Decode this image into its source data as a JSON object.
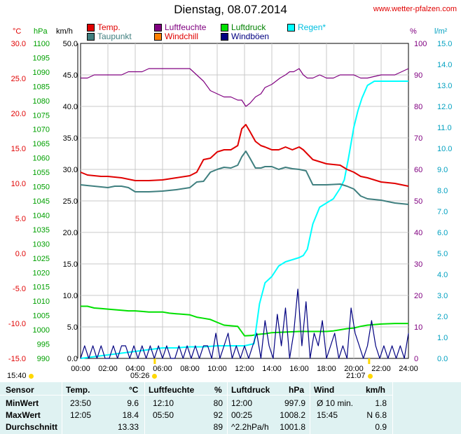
{
  "header": {
    "title": "Dienstag, 08.07.2014",
    "site": "www.wetter-pfalzen.com"
  },
  "axis_heads": {
    "temp": "°C",
    "press": "hPa",
    "wind": "km/h",
    "hum": "%",
    "rain": "l/m²"
  },
  "legend": [
    {
      "label": "Temp.",
      "color": "#e00000"
    },
    {
      "label": "Taupunkt",
      "color": "#3f7f7f"
    },
    {
      "label": "Luftfeuchte",
      "color": "#800080"
    },
    {
      "label": "Windchill",
      "color": "#ff8000"
    },
    {
      "label": "Luftdruck",
      "color": "#00e000"
    },
    {
      "label": "Windböen",
      "color": "#000080"
    },
    {
      "label": "Regen*",
      "color": "#00ffff"
    }
  ],
  "sun": {
    "sunrise": "05:26",
    "sunset": "21:07",
    "sunrise_hour": 5.43,
    "sunset_hour": 21.12,
    "left_label": "15:40"
  },
  "chart_data": {
    "type": "line",
    "title": "Dienstag, 08.07.2014",
    "x_ticks": [
      "00:00",
      "02:00",
      "04:00",
      "06:00",
      "08:00",
      "10:00",
      "12:00",
      "14:00",
      "16:00",
      "18:00",
      "20:00",
      "22:00",
      "24:00"
    ],
    "xlim": [
      0,
      24
    ],
    "axes": {
      "temp_c": {
        "ticks": [
          "30.0",
          "25.0",
          "20.0",
          "15.0",
          "10.0",
          "5.0",
          "0.0",
          "-5.0",
          "-10.0",
          "-15.0"
        ],
        "ylim": [
          -15,
          30
        ],
        "color": "#e00000"
      },
      "pressure_hpa": {
        "ticks": [
          "1100",
          "1095",
          "1090",
          "1085",
          "1080",
          "1075",
          "1070",
          "1065",
          "1060",
          "1055",
          "1050",
          "1045",
          "1040",
          "1035",
          "1030",
          "1025",
          "1020",
          "1015",
          "1010",
          "1005",
          "1000",
          "995",
          "990"
        ],
        "ylim": [
          990,
          1100
        ],
        "color": "#00a000"
      },
      "wind_kmh": {
        "ticks": [
          "50.0",
          "45.0",
          "40.0",
          "35.0",
          "30.0",
          "25.0",
          "20.0",
          "15.0",
          "10.0",
          "5.0",
          "0.0"
        ],
        "ylim": [
          0,
          50
        ],
        "color": "#000"
      },
      "humidity_pct": {
        "ticks": [
          "100",
          "90",
          "80",
          "70",
          "60",
          "50",
          "40",
          "30",
          "20",
          "10",
          "0"
        ],
        "ylim": [
          0,
          100
        ],
        "color": "#800080"
      },
      "rain_lm2": {
        "ticks": [
          "15.0",
          "14.0",
          "13.0",
          "12.0",
          "11.0",
          "10.0",
          "9.0",
          "8.0",
          "7.0",
          "6.0",
          "5.0",
          "4.0",
          "3.0",
          "2.0",
          "1.0",
          "0.0"
        ],
        "ylim": [
          0,
          15
        ],
        "color": "#00a0c0"
      }
    },
    "series": [
      {
        "name": "Temp.",
        "axis": "temp_c",
        "color": "#e00000",
        "x": [
          0,
          0.5,
          1.5,
          2,
          3,
          4,
          5,
          6,
          7,
          8,
          8.5,
          9,
          9.5,
          10,
          10.5,
          11,
          11.5,
          11.8,
          12.1,
          12.4,
          12.8,
          13.2,
          13.5,
          14,
          14.5,
          15,
          15.5,
          16,
          16.3,
          16.6,
          17,
          18,
          19,
          19.5,
          20,
          20.5,
          21,
          22,
          23,
          24
        ],
        "y": [
          11.6,
          11.2,
          11,
          11,
          10.8,
          10.4,
          10.4,
          10.5,
          10.8,
          11.1,
          11.6,
          13.4,
          13.6,
          14.5,
          14.8,
          14.8,
          15.4,
          17.8,
          18.4,
          17.4,
          16,
          15.4,
          15.2,
          14.8,
          14.8,
          15.2,
          14.8,
          15.2,
          14.8,
          14.2,
          13.4,
          12.8,
          12.6,
          12,
          11.6,
          11,
          10.8,
          10.2,
          10,
          9.6
        ]
      },
      {
        "name": "Taupunkt",
        "axis": "temp_c",
        "color": "#3f7f7f",
        "x": [
          0,
          1,
          2,
          2.5,
          3,
          3.5,
          4,
          5,
          6,
          7,
          8,
          8.5,
          9,
          9.5,
          10,
          10.5,
          11,
          11.5,
          11.8,
          12.1,
          12.4,
          12.8,
          13.2,
          13.5,
          14,
          14.5,
          15,
          15.5,
          16,
          16.5,
          17,
          18,
          19,
          19.5,
          20,
          20.5,
          21,
          22,
          23,
          24
        ],
        "y": [
          9.8,
          9.6,
          9.4,
          9.6,
          9.6,
          9.4,
          8.8,
          8.8,
          8.9,
          9.1,
          9.4,
          10.2,
          10.3,
          11.6,
          12,
          12.3,
          12.2,
          12.6,
          13.8,
          14.6,
          13.6,
          12.2,
          12.2,
          12.4,
          12.4,
          12,
          12.3,
          12.1,
          12,
          11.8,
          9.8,
          9.8,
          9.9,
          9.6,
          9.2,
          8.2,
          7.8,
          7.6,
          7.2,
          7
        ]
      },
      {
        "name": "Luftfeuchte",
        "axis": "humidity_pct",
        "color": "#800080",
        "x": [
          0,
          0.5,
          1,
          2,
          3,
          3.5,
          4.5,
          5,
          6,
          7,
          8,
          9,
          9.5,
          10,
          10.5,
          11,
          11.5,
          11.8,
          12.1,
          12.4,
          12.8,
          13.2,
          13.5,
          14,
          14.3,
          14.6,
          15,
          15.3,
          15.6,
          16,
          16.3,
          16.6,
          17,
          17.5,
          18,
          18.5,
          19,
          19.5,
          20,
          20.5,
          21,
          22,
          23,
          23.5,
          24
        ],
        "y": [
          89,
          89,
          90,
          90,
          90,
          91,
          91,
          92,
          92,
          92,
          92,
          88,
          85,
          84,
          83,
          83,
          82,
          82,
          80,
          81,
          83,
          84,
          86,
          87,
          88,
          89,
          90,
          91,
          91,
          92,
          90,
          89,
          89,
          90,
          89,
          89,
          90,
          90,
          90,
          89,
          89,
          90,
          90,
          91,
          92
        ]
      },
      {
        "name": "Luftdruck",
        "axis": "pressure_hpa",
        "color": "#00e000",
        "x": [
          0,
          0.5,
          1,
          1.5,
          2,
          3,
          3.5,
          4,
          4.5,
          5,
          6,
          6.5,
          7,
          8,
          8.5,
          9,
          9.5,
          10,
          10.5,
          11,
          11.5,
          12,
          12.5,
          13,
          13.5,
          14,
          15,
          16,
          17,
          18,
          18.5,
          19,
          19.5,
          20,
          20.5,
          21,
          22,
          23,
          24
        ],
        "y": [
          1008.2,
          1008.2,
          1007.6,
          1007.4,
          1007.2,
          1006.8,
          1006.6,
          1006.6,
          1006.4,
          1006.2,
          1006.2,
          1005.8,
          1005.6,
          1005.2,
          1004.4,
          1004,
          1003.6,
          1002.6,
          1001.6,
          1001.4,
          1001.2,
          997.9,
          998,
          998.4,
          998.6,
          999,
          999.2,
          999.4,
          999.4,
          999.4,
          999.6,
          1000,
          1000.4,
          1000.6,
          1001.2,
          1001.6,
          1002,
          1002.2,
          1002.2
        ]
      },
      {
        "name": "Regen*",
        "axis": "rain_lm2",
        "color": "#00ffff",
        "x": [
          0,
          6,
          7,
          8,
          9,
          10,
          11,
          12,
          12.7,
          13.1,
          13.5,
          14,
          14.5,
          15,
          15.5,
          16,
          16.3,
          16.6,
          17,
          17.5,
          18,
          18.5,
          19,
          19.3,
          19.6,
          20,
          20.3,
          20.6,
          21,
          21.5,
          22,
          23,
          24
        ],
        "y": [
          0,
          0.5,
          0.5,
          0.55,
          0.55,
          0.6,
          0.6,
          0.6,
          0.7,
          2.6,
          3.6,
          3.9,
          4.4,
          4.6,
          4.7,
          4.8,
          4.9,
          5.2,
          6.4,
          7.2,
          7.4,
          7.6,
          8.1,
          8.5,
          9.5,
          11,
          11.8,
          12.4,
          13,
          13.2,
          13.2,
          13.2,
          13.2
        ]
      },
      {
        "name": "Windböen",
        "axis": "wind_kmh",
        "color": "#000080",
        "x": [
          0,
          0.3,
          0.6,
          0.9,
          1.2,
          1.5,
          1.8,
          2.1,
          2.4,
          2.7,
          3,
          3.3,
          3.6,
          3.9,
          4.2,
          4.5,
          4.8,
          5.1,
          5.4,
          5.7,
          6,
          6.3,
          6.6,
          6.9,
          7.2,
          7.5,
          7.8,
          8.1,
          8.4,
          8.7,
          9,
          9.3,
          9.6,
          9.9,
          10.2,
          10.5,
          10.8,
          11.1,
          11.4,
          11.7,
          12,
          12.3,
          12.6,
          12.9,
          13.2,
          13.5,
          13.8,
          14.1,
          14.4,
          14.7,
          15,
          15.3,
          15.6,
          15.9,
          16.2,
          16.5,
          16.8,
          17.1,
          17.4,
          17.7,
          18,
          18.3,
          18.6,
          18.9,
          19.2,
          19.5,
          19.8,
          20.1,
          20.4,
          20.7,
          21,
          21.3,
          21.6,
          21.9,
          22.2,
          22.5,
          22.8,
          23.1,
          23.4,
          23.7,
          24
        ],
        "y": [
          0,
          2,
          0,
          2,
          0,
          2,
          0,
          0,
          2,
          0,
          2,
          2,
          0,
          2,
          0,
          2,
          0,
          2,
          0,
          2,
          0,
          2,
          0,
          0,
          2,
          0,
          2,
          0,
          2,
          0,
          2,
          2,
          0,
          4,
          0,
          2,
          4,
          0,
          2,
          0,
          2,
          0,
          2,
          4,
          0,
          6,
          2,
          0,
          7,
          2,
          8,
          0,
          4,
          11,
          2,
          9,
          0,
          4,
          2,
          6,
          0,
          2,
          4,
          0,
          2,
          0,
          8,
          4,
          2,
          0,
          2,
          6,
          2,
          0,
          2,
          0,
          2,
          0,
          2,
          0,
          4
        ]
      }
    ]
  },
  "stats": {
    "headers": {
      "sensor": "Sensor",
      "temp": "Temp.",
      "temp_unit": "°C",
      "hum": "Luftfeuchte",
      "hum_unit": "%",
      "press": "Luftdruck",
      "press_unit": "hPa",
      "wind": "Wind",
      "wind_unit": "km/h"
    },
    "rows": [
      {
        "label": "MinWert",
        "t_time": "23:50",
        "t_val": "9.6",
        "h_time": "12:10",
        "h_val": "80",
        "p_time": "12:00",
        "p_val": "997.9",
        "w_label": "Ø 10 min.",
        "w_val": "1.8"
      },
      {
        "label": "MaxWert",
        "t_time": "12:05",
        "t_val": "18.4",
        "h_time": "05:50",
        "h_val": "92",
        "p_time": "00:25",
        "p_val": "1008.2",
        "w_label": "15:45",
        "w_val": "N 6.8"
      },
      {
        "label": "Durchschnitt",
        "t_time": "",
        "t_val": "13.33",
        "h_time": "",
        "h_val": "89",
        "p_time": "^2.2hPa/h",
        "p_val": "1001.8",
        "w_label": "",
        "w_val": "0.9"
      }
    ]
  }
}
